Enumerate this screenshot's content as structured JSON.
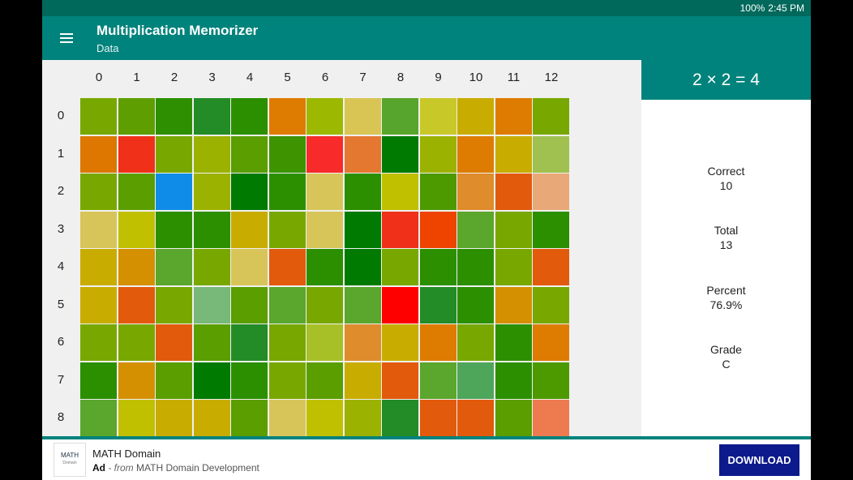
{
  "status_bar": {
    "battery": "100%",
    "time": "2:45 PM"
  },
  "app_bar": {
    "title": "Multiplication Memorizer",
    "subtitle": "Data"
  },
  "grid": {
    "columns": [
      "0",
      "1",
      "2",
      "3",
      "4",
      "5",
      "6",
      "7",
      "8",
      "9",
      "10",
      "11",
      "12"
    ],
    "rows": [
      "0",
      "1",
      "2",
      "3",
      "4",
      "5",
      "6",
      "7",
      "8"
    ],
    "colors": [
      [
        "#78a800",
        "#5e9e00",
        "#2e8f00",
        "#238c26",
        "#2b8f00",
        "#dd7c00",
        "#9cb800",
        "#d8c554",
        "#57a52c",
        "#c8c828",
        "#c9ac00",
        "#dd7c00",
        "#78a800"
      ],
      [
        "#dd7700",
        "#f03018",
        "#78a800",
        "#9cb200",
        "#5a9e00",
        "#3d9300",
        "#f82a2a",
        "#e57830",
        "#007a00",
        "#9cb200",
        "#dd7c00",
        "#c9ac00",
        "#a0c050"
      ],
      [
        "#78a800",
        "#5a9e00",
        "#0f8ce8",
        "#9cb200",
        "#007a00",
        "#2b8f00",
        "#d8c55a",
        "#2b8f00",
        "#c0c000",
        "#4c9a00",
        "#de8c2c",
        "#e25a0c",
        "#e8a878"
      ],
      [
        "#d8c55a",
        "#c0c000",
        "#2b8f00",
        "#2b8f00",
        "#c9ac00",
        "#78a800",
        "#d8c55a",
        "#007a00",
        "#f03018",
        "#ee4400",
        "#5ba62c",
        "#78a800",
        "#2b8f00"
      ],
      [
        "#c9ac00",
        "#d49000",
        "#5ba62c",
        "#78a800",
        "#d8c55a",
        "#e25a0c",
        "#2b8f00",
        "#007a00",
        "#78a800",
        "#2b8f00",
        "#2b8f00",
        "#78a800",
        "#e25a0c"
      ],
      [
        "#c9ac00",
        "#e25a0c",
        "#78a800",
        "#78b878",
        "#5a9e00",
        "#5ba62c",
        "#78a800",
        "#5ba62c",
        "#ff0000",
        "#238c26",
        "#2b8f00",
        "#d49000",
        "#78a800"
      ],
      [
        "#78a800",
        "#78a800",
        "#e25a0c",
        "#5a9e00",
        "#238c26",
        "#78a800",
        "#a8c028",
        "#de8c2c",
        "#c9ac00",
        "#dd7c00",
        "#78a800",
        "#2b8f00",
        "#dd7c00"
      ],
      [
        "#2b8f00",
        "#d49000",
        "#5a9e00",
        "#007a00",
        "#2b8f00",
        "#78a800",
        "#5a9e00",
        "#c9ac00",
        "#e25a0c",
        "#5ba62c",
        "#4ea65a",
        "#2b8f00",
        "#4c9a00"
      ],
      [
        "#5ba62c",
        "#c0c000",
        "#c9ac00",
        "#c9ac00",
        "#5a9e00",
        "#d8c55a",
        "#c0c000",
        "#9cb200",
        "#238c26",
        "#e25a0c",
        "#e25a0c",
        "#5a9e00",
        "#ee7a50"
      ]
    ]
  },
  "side_panel": {
    "equation": "2 × 2 = 4",
    "stats": [
      {
        "label": "Correct",
        "value": "10"
      },
      {
        "label": "Total",
        "value": "13"
      },
      {
        "label": "Percent",
        "value": "76.9%"
      },
      {
        "label": "Grade",
        "value": "C"
      }
    ]
  },
  "ad": {
    "logo_text": "MATH",
    "logo_subtext": "Domain",
    "title": "MATH Domain",
    "prefix": "Ad",
    "from": " - from ",
    "publisher": "MATH Domain Development",
    "button_label": "DOWNLOAD"
  },
  "colors": {
    "teal": "#00837c",
    "status_teal": "#00695c",
    "button_navy": "#0d1a8c"
  }
}
